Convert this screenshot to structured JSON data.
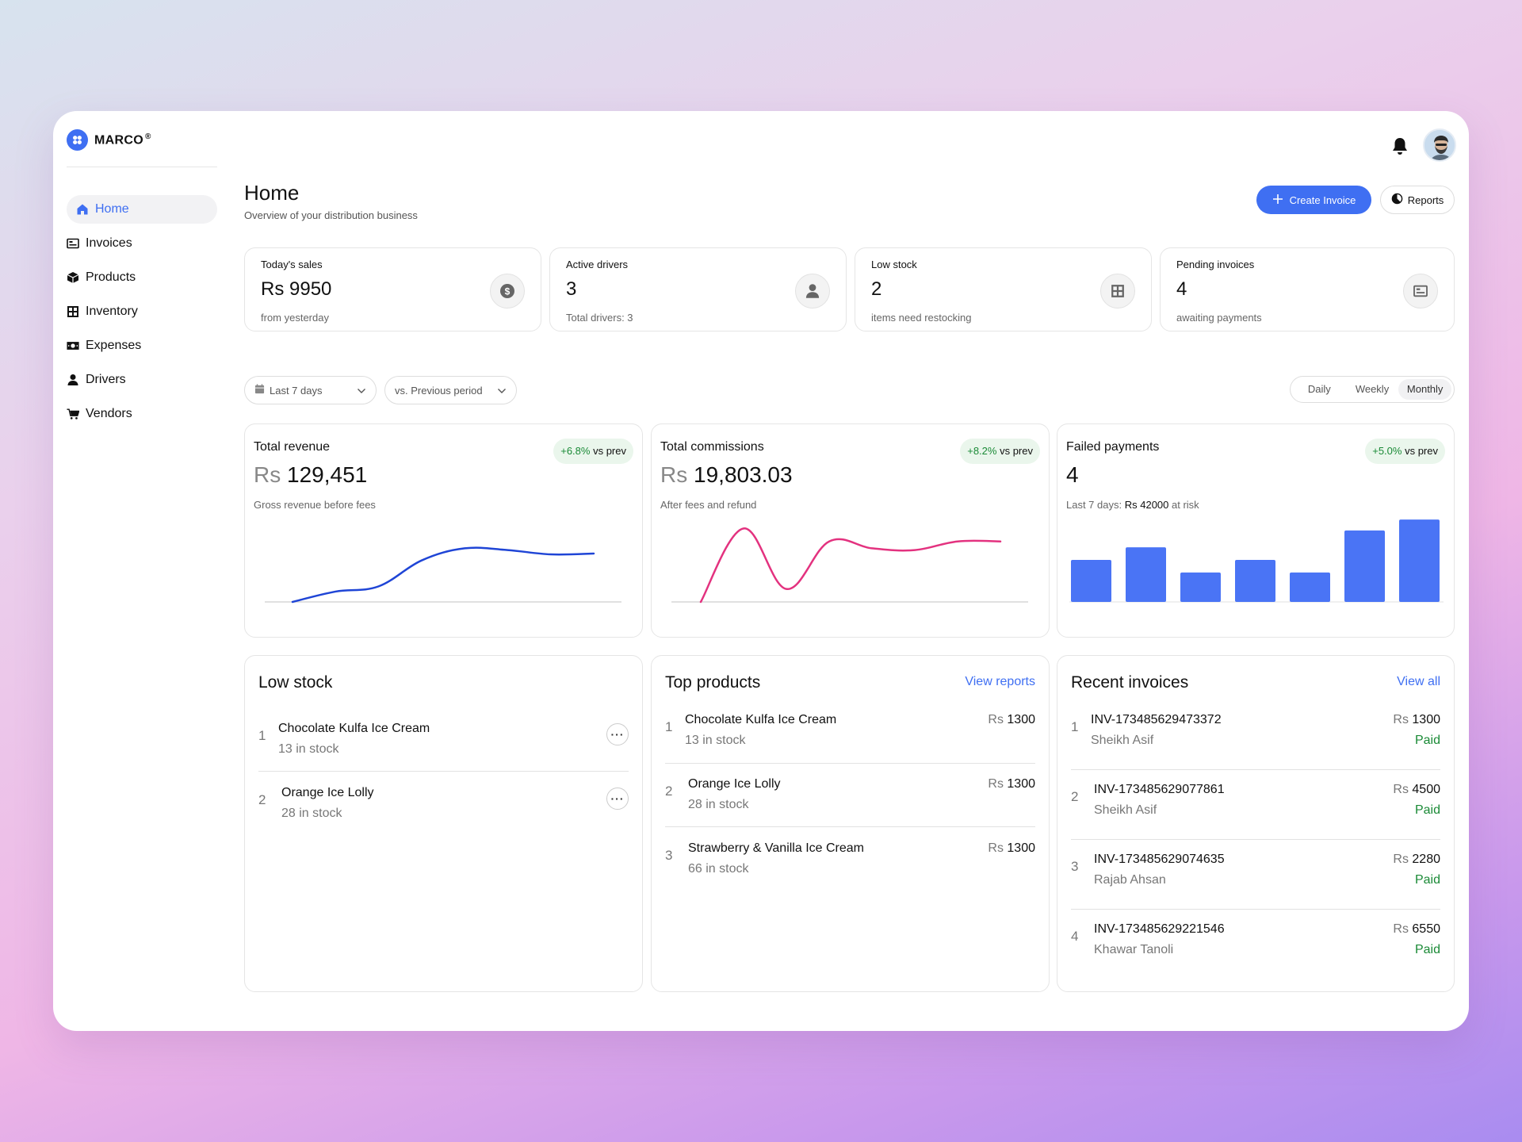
{
  "brand": {
    "name": "MARCO",
    "reg": "®"
  },
  "sidebar": {
    "items": [
      {
        "label": "Home",
        "icon": "home-icon",
        "active": true
      },
      {
        "label": "Invoices",
        "icon": "invoice-icon"
      },
      {
        "label": "Products",
        "icon": "box-icon"
      },
      {
        "label": "Inventory",
        "icon": "inventory-icon"
      },
      {
        "label": "Expenses",
        "icon": "money-icon"
      },
      {
        "label": "Drivers",
        "icon": "user-icon"
      },
      {
        "label": "Vendors",
        "icon": "cart-icon"
      }
    ]
  },
  "header": {
    "title": "Home",
    "subtitle": "Overview of your distribution business",
    "create_label": "Create Invoice",
    "reports_label": "Reports"
  },
  "stats": [
    {
      "label": "Today's sales",
      "value": "Rs 9950",
      "foot": "from yesterday",
      "icon": "dollar-icon"
    },
    {
      "label": "Active drivers",
      "value": "3",
      "foot": "Total drivers: 3",
      "icon": "user-icon"
    },
    {
      "label": "Low stock",
      "value": "2",
      "foot": "items need restocking",
      "icon": "inventory-icon"
    },
    {
      "label": "Pending invoices",
      "value": "4",
      "foot": "awaiting payments",
      "icon": "invoice-icon"
    }
  ],
  "filters": {
    "range": "Last 7 days",
    "compare": "vs. Previous period",
    "segments": [
      "Daily",
      "Weekly",
      "Monthly"
    ],
    "active_segment": "Monthly"
  },
  "cards": {
    "revenue": {
      "title": "Total revenue",
      "currency": "Rs",
      "value": "129,451",
      "desc": "Gross revenue before fees",
      "delta": "+6.8%",
      "delta_suffix": "vs prev"
    },
    "commissions": {
      "title": "Total commissions",
      "currency": "Rs",
      "value": "19,803.03",
      "desc": "After fees and refund",
      "delta": "+8.2%",
      "delta_suffix": "vs prev"
    },
    "failed": {
      "title": "Failed payments",
      "value": "4",
      "desc_prefix": "Last 7 days:",
      "desc_amount": "Rs 42000",
      "desc_suffix": "at risk",
      "delta": "+5.0%",
      "delta_suffix": "vs prev"
    }
  },
  "colors": {
    "accent": "#3f6ff2",
    "revenue_line": "#1f45d6",
    "commission_line": "#e3327f",
    "bar": "#4a74f5",
    "success": "#1a8a36"
  },
  "chart_data": [
    {
      "type": "line",
      "x": [
        0,
        1,
        2,
        3,
        4,
        5,
        6,
        7
      ],
      "values": [
        0,
        12,
        18,
        48,
        62,
        60,
        55,
        56
      ],
      "ylim": [
        0,
        100
      ]
    },
    {
      "type": "line",
      "x": [
        0,
        1,
        2,
        3,
        4,
        5,
        6,
        7
      ],
      "values": [
        0,
        85,
        15,
        70,
        62,
        60,
        70,
        70
      ],
      "ylim": [
        0,
        100
      ]
    },
    {
      "type": "bar",
      "categories": [
        "1",
        "2",
        "3",
        "4",
        "5",
        "6",
        "7"
      ],
      "values": [
        5,
        6.5,
        3.5,
        5,
        3.5,
        8.5,
        9.8
      ],
      "ylim": [
        0,
        10
      ]
    }
  ],
  "low_stock": {
    "title": "Low stock",
    "items": [
      {
        "idx": "1",
        "name": "Chocolate Kulfa  Ice Cream",
        "sub": "13 in stock"
      },
      {
        "idx": "2",
        "name": "Orange Ice Lolly",
        "sub": "28 in stock"
      }
    ]
  },
  "top_products": {
    "title": "Top products",
    "link": "View reports",
    "items": [
      {
        "idx": "1",
        "name": "Chocolate Kulfa  Ice Cream",
        "sub": "13 in stock",
        "currency": "Rs",
        "price": "1300"
      },
      {
        "idx": "2",
        "name": "Orange Ice Lolly",
        "sub": "28 in stock",
        "currency": "Rs",
        "price": "1300"
      },
      {
        "idx": "3",
        "name": "Strawberry & Vanilla  Ice Cream",
        "sub": "66 in stock",
        "currency": "Rs",
        "price": "1300"
      }
    ]
  },
  "recent_invoices": {
    "title": "Recent invoices",
    "link": "View all",
    "items": [
      {
        "idx": "1",
        "id": "INV-173485629473372",
        "customer": "Sheikh Asif",
        "currency": "Rs",
        "amount": "1300",
        "status": "Paid"
      },
      {
        "idx": "2",
        "id": "INV-173485629077861",
        "customer": "Sheikh Asif",
        "currency": "Rs",
        "amount": "4500",
        "status": "Paid"
      },
      {
        "idx": "3",
        "id": "INV-173485629074635",
        "customer": "Rajab Ahsan",
        "currency": "Rs",
        "amount": "2280",
        "status": "Paid"
      },
      {
        "idx": "4",
        "id": "INV-173485629221546",
        "customer": "Khawar Tanoli",
        "currency": "Rs",
        "amount": "6550",
        "status": "Paid"
      }
    ]
  }
}
